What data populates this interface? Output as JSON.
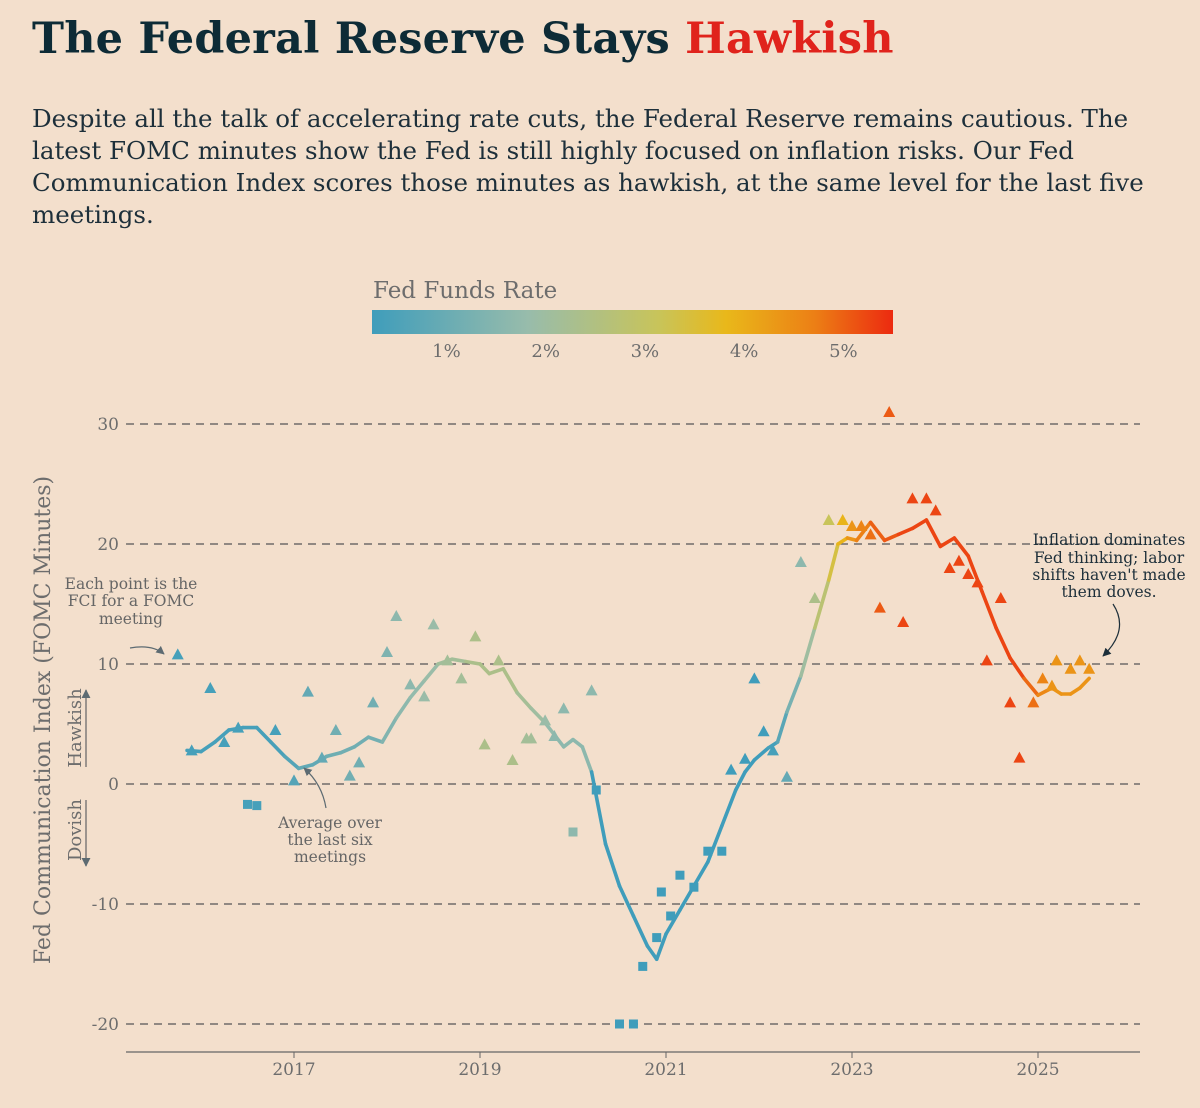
{
  "title_main": "The Federal Reserve Stays",
  "title_highlight": "Hawkish",
  "subtitle": "Despite all the talk of accelerating rate cuts, the Federal Reserve remains cautious. The latest FOMC minutes show the Fed is still highly focused on inflation risks. Our Fed Communication Index scores those minutes as hawkish, at the same level for the last five meetings.",
  "colors": {
    "background": "#f3dfcc",
    "title": "#0d2b36",
    "highlight": "#e0231c",
    "scale": [
      "#3f9dbb",
      "#98bcab",
      "#c8c45a",
      "#e9b81a",
      "#ec7f15",
      "#ec3a13"
    ]
  },
  "legend": {
    "title": "Fed Funds Rate",
    "ticks": [
      "1%",
      "2%",
      "3%",
      "4%",
      "5%"
    ]
  },
  "annotations": {
    "points": [
      "Each point is the",
      "FCI for a FOMC",
      "meeting"
    ],
    "average": [
      "Average over",
      "the last six",
      "meetings"
    ],
    "inflation": [
      "Inflation dominates",
      "Fed thinking; labor",
      "shifts haven't made",
      "them doves."
    ],
    "hawkish": "Hawkish",
    "dovish": "Dovish"
  },
  "chart_data": {
    "type": "line",
    "ylabel": "Fed Communication Index (FOMC Minutes)",
    "xlabel": "",
    "ylim": [
      -22,
      32
    ],
    "xlim": [
      2015.2,
      2026.0
    ],
    "yticks": [
      -20,
      -10,
      0,
      10,
      20,
      30
    ],
    "xticks": [
      2017,
      2019,
      2021,
      2023,
      2025
    ],
    "grid": "dashed horizontal",
    "rate_scale": [
      0.25,
      5.5
    ],
    "series": [
      {
        "name": "Average over the last six meetings",
        "x": [
          2015.85,
          2016.0,
          2016.15,
          2016.3,
          2016.45,
          2016.6,
          2016.75,
          2016.9,
          2017.05,
          2017.2,
          2017.35,
          2017.5,
          2017.65,
          2017.8,
          2017.95,
          2018.1,
          2018.25,
          2018.4,
          2018.55,
          2018.7,
          2018.85,
          2019.0,
          2019.1,
          2019.25,
          2019.4,
          2019.55,
          2019.7,
          2019.8,
          2019.9,
          2020.0,
          2020.1,
          2020.2,
          2020.35,
          2020.5,
          2020.65,
          2020.8,
          2020.9,
          2021.0,
          2021.15,
          2021.3,
          2021.45,
          2021.6,
          2021.75,
          2021.85,
          2021.95,
          2022.1,
          2022.2,
          2022.3,
          2022.45,
          2022.6,
          2022.75,
          2022.85,
          2022.95,
          2023.05,
          2023.2,
          2023.35,
          2023.5,
          2023.65,
          2023.8,
          2023.95,
          2024.1,
          2024.25,
          2024.4,
          2024.55,
          2024.7,
          2024.85,
          2025.0,
          2025.15,
          2025.25,
          2025.35,
          2025.45,
          2025.55
        ],
        "values": [
          2.8,
          2.7,
          3.5,
          4.5,
          4.7,
          4.7,
          3.5,
          2.3,
          1.3,
          1.6,
          2.3,
          2.6,
          3.1,
          3.9,
          3.5,
          5.5,
          7.2,
          8.6,
          10.0,
          10.4,
          10.2,
          10.0,
          9.2,
          9.6,
          7.6,
          6.3,
          5.1,
          4.1,
          3.1,
          3.7,
          3.1,
          1.0,
          -5.0,
          -8.5,
          -11.0,
          -13.5,
          -14.6,
          -12.5,
          -10.5,
          -8.5,
          -6.5,
          -3.5,
          -0.5,
          1.0,
          2.0,
          3.0,
          3.5,
          6.0,
          9.0,
          13.0,
          17.0,
          20.0,
          20.5,
          20.3,
          21.8,
          20.3,
          20.8,
          21.3,
          22.0,
          19.8,
          20.5,
          19.0,
          16.0,
          13.0,
          10.5,
          8.8,
          7.4,
          8.0,
          7.5,
          7.5,
          8.0,
          8.8
        ]
      },
      {
        "name": "FCI per FOMC meeting",
        "x": [
          2015.75,
          2015.9,
          2016.1,
          2016.25,
          2016.4,
          2016.5,
          2016.6,
          2016.8,
          2017.0,
          2017.15,
          2017.3,
          2017.45,
          2017.6,
          2017.7,
          2017.85,
          2018.0,
          2018.1,
          2018.25,
          2018.4,
          2018.5,
          2018.65,
          2018.8,
          2018.95,
          2019.05,
          2019.2,
          2019.35,
          2019.5,
          2019.55,
          2019.7,
          2019.8,
          2019.9,
          2020.0,
          2020.2,
          2020.25,
          2020.5,
          2020.65,
          2020.75,
          2020.9,
          2020.95,
          2021.05,
          2021.15,
          2021.3,
          2021.45,
          2021.6,
          2021.7,
          2021.85,
          2021.95,
          2022.05,
          2022.15,
          2022.3,
          2022.45,
          2022.6,
          2022.75,
          2022.9,
          2023.0,
          2023.1,
          2023.2,
          2023.3,
          2023.4,
          2023.55,
          2023.65,
          2023.8,
          2023.9,
          2024.05,
          2024.15,
          2024.25,
          2024.35,
          2024.45,
          2024.6,
          2024.7,
          2024.8,
          2024.95,
          2025.05,
          2025.15,
          2025.2,
          2025.35,
          2025.45,
          2025.55
        ],
        "values": [
          10.8,
          2.8,
          8.0,
          3.5,
          4.7,
          -1.7,
          -1.8,
          4.5,
          0.3,
          7.7,
          2.2,
          4.5,
          0.7,
          1.8,
          6.8,
          11.0,
          14.0,
          8.3,
          7.3,
          13.3,
          10.3,
          8.8,
          12.3,
          3.3,
          10.3,
          2.0,
          3.8,
          3.8,
          5.3,
          4.0,
          6.3,
          -4.0,
          7.8,
          -0.5,
          -20.0,
          -20.0,
          -15.2,
          -12.8,
          -9.0,
          -11.0,
          -7.6,
          -8.6,
          -5.6,
          -5.6,
          1.2,
          2.1,
          8.8,
          4.4,
          2.8,
          0.6,
          18.5,
          15.5,
          22.0,
          22.0,
          21.5,
          21.5,
          20.8,
          14.7,
          31.0,
          13.5,
          23.8,
          23.8,
          22.8,
          18.0,
          18.6,
          17.5,
          16.8,
          10.3,
          15.5,
          6.8,
          2.2,
          6.8,
          8.8,
          8.2,
          10.3,
          9.6,
          10.3,
          9.6
        ],
        "rates": [
          0.38,
          0.38,
          0.38,
          0.38,
          0.38,
          0.38,
          0.38,
          0.38,
          0.63,
          0.88,
          0.88,
          1.13,
          1.13,
          1.13,
          1.13,
          1.38,
          1.63,
          1.63,
          1.88,
          1.88,
          2.13,
          2.13,
          2.38,
          2.38,
          2.38,
          2.38,
          2.13,
          2.13,
          1.88,
          1.63,
          1.63,
          1.63,
          1.63,
          0.13,
          0.13,
          0.13,
          0.13,
          0.13,
          0.13,
          0.13,
          0.13,
          0.13,
          0.13,
          0.13,
          0.13,
          0.13,
          0.13,
          0.13,
          0.38,
          0.88,
          1.63,
          2.38,
          3.13,
          3.88,
          4.38,
          4.63,
          4.88,
          5.13,
          5.13,
          5.38,
          5.38,
          5.38,
          5.38,
          5.38,
          5.38,
          5.38,
          5.38,
          5.38,
          5.38,
          5.38,
          5.38,
          4.88,
          4.63,
          4.38,
          4.38,
          4.38,
          4.38,
          4.38
        ],
        "markers": [
          "tri",
          "tri",
          "tri",
          "tri",
          "tri",
          "sq",
          "sq",
          "tri",
          "tri",
          "tri",
          "tri",
          "tri",
          "tri",
          "tri",
          "tri",
          "tri",
          "tri",
          "tri",
          "tri",
          "tri",
          "tri",
          "tri",
          "tri",
          "tri",
          "tri",
          "tri",
          "tri",
          "tri",
          "tri",
          "tri",
          "tri",
          "sq",
          "tri",
          "sq",
          "sq",
          "sq",
          "sq",
          "sq",
          "sq",
          "sq",
          "sq",
          "sq",
          "sq",
          "sq",
          "tri",
          "tri",
          "tri",
          "tri",
          "tri",
          "tri",
          "tri",
          "tri",
          "tri",
          "tri",
          "tri",
          "tri",
          "tri",
          "tri",
          "tri",
          "tri",
          "tri",
          "tri",
          "tri",
          "tri",
          "tri",
          "tri",
          "tri",
          "tri",
          "tri",
          "tri",
          "tri",
          "tri",
          "tri",
          "tri",
          "tri",
          "tri",
          "tri",
          "tri"
        ]
      }
    ]
  }
}
